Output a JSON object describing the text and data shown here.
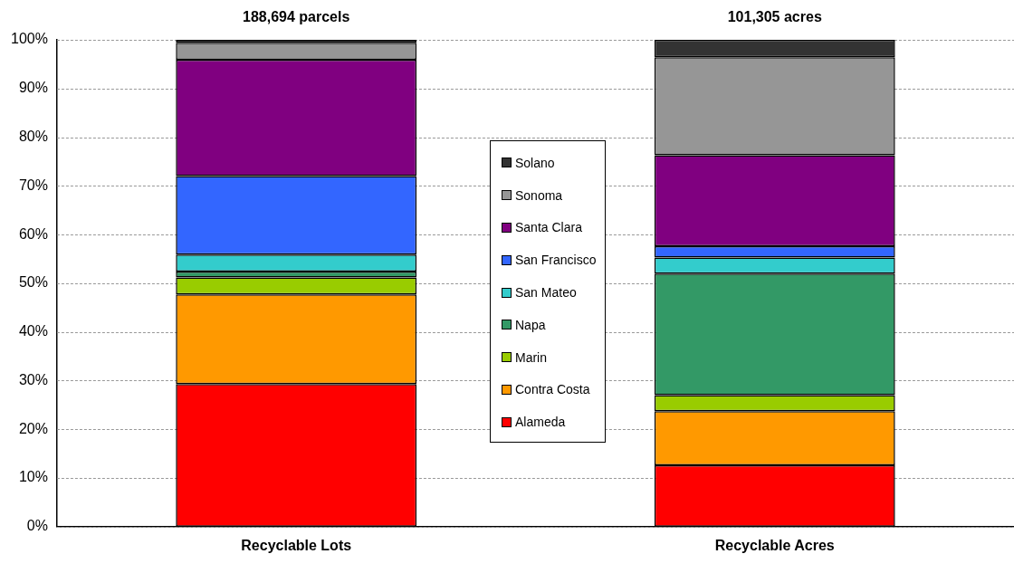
{
  "chart_data": {
    "type": "bar",
    "stacked": true,
    "categories": [
      "Recyclable Lots",
      "Recyclable Acres"
    ],
    "series": [
      {
        "name": "Alameda",
        "color": "#ff0000",
        "values": [
          29.3,
          12.6
        ]
      },
      {
        "name": "Contra Costa",
        "color": "#ff9900",
        "values": [
          18.4,
          11.1
        ]
      },
      {
        "name": "Marin",
        "color": "#99cc00",
        "values": [
          3.5,
          3.3
        ]
      },
      {
        "name": "Napa",
        "color": "#339966",
        "values": [
          1.2,
          25.0
        ]
      },
      {
        "name": "San Mateo",
        "color": "#33cccc",
        "values": [
          3.5,
          3.3
        ]
      },
      {
        "name": "San Francisco",
        "color": "#3366ff",
        "values": [
          16.1,
          2.3
        ]
      },
      {
        "name": "Santa Clara",
        "color": "#800080",
        "values": [
          23.9,
          18.7
        ]
      },
      {
        "name": "Sonoma",
        "color": "#969696",
        "values": [
          3.5,
          20.1
        ]
      },
      {
        "name": "Solano",
        "color": "#333333",
        "values": [
          0.6,
          3.6
        ]
      }
    ],
    "ylim": [
      0,
      100
    ],
    "yticks": [
      {
        "value": 0,
        "label": "0%"
      },
      {
        "value": 10,
        "label": "10%"
      },
      {
        "value": 20,
        "label": "20%"
      },
      {
        "value": 30,
        "label": "30%"
      },
      {
        "value": 40,
        "label": "40%"
      },
      {
        "value": 50,
        "label": "50%"
      },
      {
        "value": 60,
        "label": "60%"
      },
      {
        "value": 70,
        "label": "70%"
      },
      {
        "value": 80,
        "label": "80%"
      },
      {
        "value": 90,
        "label": "90%"
      },
      {
        "value": 100,
        "label": "100%"
      }
    ],
    "grid": "y",
    "legend": "center",
    "annotations": [
      {
        "text": "188,694 parcels",
        "x": "Recyclable Lots",
        "y": 100
      },
      {
        "text": "101,305 acres",
        "x": "Recyclable Acres",
        "y": 100
      }
    ]
  }
}
